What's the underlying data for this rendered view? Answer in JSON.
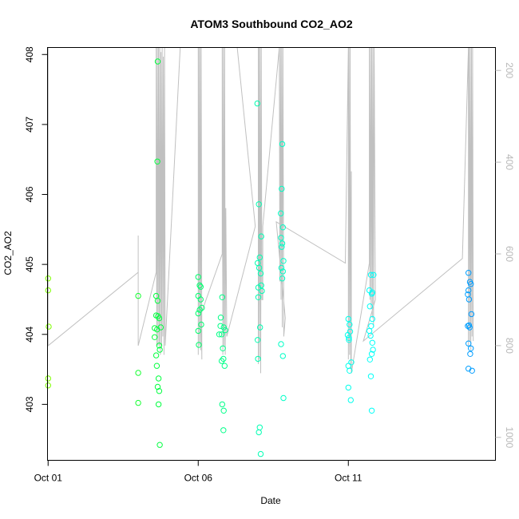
{
  "chart_data": {
    "type": "scatter",
    "title": "ATOM3 Southbound CO2_AO2",
    "xlabel": "Date",
    "ylabel": "CO2_AO2",
    "x_ticks": [
      {
        "day": 1,
        "label": "Oct 01"
      },
      {
        "day": 6,
        "label": "Oct 06"
      },
      {
        "day": 11,
        "label": "Oct 11"
      }
    ],
    "xlim": [
      0.98,
      15.9
    ],
    "ylim": [
      402.2,
      408.1
    ],
    "y_ticks": [
      403,
      404,
      405,
      406,
      407,
      408
    ],
    "y2lim": [
      1050,
      150
    ],
    "y2_ticks": [
      200,
      400,
      600,
      800,
      1000
    ],
    "grid": false,
    "legend": "none",
    "colors": {
      "profile_line": "#c0c0c0",
      "right_axis": "#b8b8b8",
      "points_gradient": [
        "#80ff00",
        "#00ff40",
        "#00ffc0",
        "#00ffff",
        "#0080ff"
      ]
    },
    "series": [
      {
        "values": [
          {
            "x": 1.0,
            "y": 404.8
          },
          {
            "x": 1.0,
            "y": 404.63
          },
          {
            "x": 1.02,
            "y": 404.11
          },
          {
            "x": 1.0,
            "y": 403.37
          },
          {
            "x": 1.0,
            "y": 403.27
          },
          {
            "x": 4.0,
            "y": 404.55
          },
          {
            "x": 4.0,
            "y": 403.45
          },
          {
            "x": 4.0,
            "y": 403.02
          },
          {
            "x": 4.6,
            "y": 404.55
          },
          {
            "x": 4.6,
            "y": 404.27
          },
          {
            "x": 4.55,
            "y": 404.09
          },
          {
            "x": 4.55,
            "y": 403.96
          },
          {
            "x": 4.6,
            "y": 403.7
          },
          {
            "x": 4.62,
            "y": 403.55
          },
          {
            "x": 4.65,
            "y": 403.25
          },
          {
            "x": 4.7,
            "y": 403.19
          },
          {
            "x": 4.68,
            "y": 403.0
          },
          {
            "x": 4.72,
            "y": 402.42
          },
          {
            "x": 4.65,
            "y": 407.9
          },
          {
            "x": 4.65,
            "y": 404.48
          },
          {
            "x": 4.63,
            "y": 404.07
          },
          {
            "x": 4.7,
            "y": 403.84
          },
          {
            "x": 4.72,
            "y": 403.78
          },
          {
            "x": 4.68,
            "y": 403.37
          },
          {
            "x": 4.66,
            "y": 404.26
          },
          {
            "x": 4.75,
            "y": 404.1
          },
          {
            "x": 4.64,
            "y": 406.47
          },
          {
            "x": 4.7,
            "y": 404.23
          },
          {
            "x": 6.0,
            "y": 404.82
          },
          {
            "x": 6.05,
            "y": 404.7
          },
          {
            "x": 6.0,
            "y": 404.55
          },
          {
            "x": 6.08,
            "y": 404.5
          },
          {
            "x": 6.05,
            "y": 404.35
          },
          {
            "x": 6.0,
            "y": 404.3
          },
          {
            "x": 6.1,
            "y": 404.14
          },
          {
            "x": 6.0,
            "y": 404.05
          },
          {
            "x": 6.02,
            "y": 403.85
          },
          {
            "x": 6.08,
            "y": 404.68
          },
          {
            "x": 6.12,
            "y": 404.38
          },
          {
            "x": 6.8,
            "y": 404.53
          },
          {
            "x": 6.75,
            "y": 404.24
          },
          {
            "x": 6.85,
            "y": 404.1
          },
          {
            "x": 6.78,
            "y": 404.0
          },
          {
            "x": 6.82,
            "y": 403.8
          },
          {
            "x": 6.84,
            "y": 403.65
          },
          {
            "x": 6.88,
            "y": 403.55
          },
          {
            "x": 6.8,
            "y": 403.0
          },
          {
            "x": 6.85,
            "y": 402.91
          },
          {
            "x": 6.84,
            "y": 402.63
          },
          {
            "x": 6.7,
            "y": 404.0
          },
          {
            "x": 6.74,
            "y": 404.12
          },
          {
            "x": 6.9,
            "y": 404.06
          },
          {
            "x": 6.78,
            "y": 403.62
          },
          {
            "x": 7.97,
            "y": 407.3
          },
          {
            "x": 8.02,
            "y": 405.86
          },
          {
            "x": 8.1,
            "y": 405.4
          },
          {
            "x": 8.05,
            "y": 405.1
          },
          {
            "x": 7.98,
            "y": 405.02
          },
          {
            "x": 8.03,
            "y": 404.95
          },
          {
            "x": 8.08,
            "y": 404.87
          },
          {
            "x": 8.0,
            "y": 404.67
          },
          {
            "x": 8.1,
            "y": 404.7
          },
          {
            "x": 8.12,
            "y": 404.62
          },
          {
            "x": 8.0,
            "y": 404.53
          },
          {
            "x": 7.98,
            "y": 403.92
          },
          {
            "x": 8.06,
            "y": 404.1
          },
          {
            "x": 7.99,
            "y": 403.65
          },
          {
            "x": 8.05,
            "y": 402.67
          },
          {
            "x": 8.02,
            "y": 402.6
          },
          {
            "x": 8.08,
            "y": 402.29
          },
          {
            "x": 8.8,
            "y": 406.72
          },
          {
            "x": 8.78,
            "y": 406.08
          },
          {
            "x": 8.75,
            "y": 405.73
          },
          {
            "x": 8.82,
            "y": 405.53
          },
          {
            "x": 8.76,
            "y": 405.38
          },
          {
            "x": 8.8,
            "y": 405.3
          },
          {
            "x": 8.78,
            "y": 405.25
          },
          {
            "x": 8.84,
            "y": 405.05
          },
          {
            "x": 8.77,
            "y": 404.95
          },
          {
            "x": 8.82,
            "y": 404.9
          },
          {
            "x": 8.8,
            "y": 404.8
          },
          {
            "x": 8.76,
            "y": 403.86
          },
          {
            "x": 8.82,
            "y": 403.69
          },
          {
            "x": 8.84,
            "y": 403.09
          },
          {
            "x": 11.0,
            "y": 404.22
          },
          {
            "x": 11.04,
            "y": 404.14
          },
          {
            "x": 11.06,
            "y": 404.04
          },
          {
            "x": 10.98,
            "y": 403.99
          },
          {
            "x": 11.02,
            "y": 403.92
          },
          {
            "x": 11.0,
            "y": 403.55
          },
          {
            "x": 11.04,
            "y": 403.48
          },
          {
            "x": 11.0,
            "y": 403.24
          },
          {
            "x": 11.08,
            "y": 403.06
          },
          {
            "x": 11.1,
            "y": 403.6
          },
          {
            "x": 11.02,
            "y": 403.95
          },
          {
            "x": 11.75,
            "y": 404.85
          },
          {
            "x": 11.7,
            "y": 404.63
          },
          {
            "x": 11.78,
            "y": 404.58
          },
          {
            "x": 11.72,
            "y": 404.4
          },
          {
            "x": 11.8,
            "y": 404.22
          },
          {
            "x": 11.76,
            "y": 404.12
          },
          {
            "x": 11.7,
            "y": 404.05
          },
          {
            "x": 11.74,
            "y": 403.98
          },
          {
            "x": 11.8,
            "y": 403.88
          },
          {
            "x": 11.82,
            "y": 403.78
          },
          {
            "x": 11.78,
            "y": 403.72
          },
          {
            "x": 11.72,
            "y": 403.64
          },
          {
            "x": 11.75,
            "y": 403.4
          },
          {
            "x": 11.78,
            "y": 402.91
          },
          {
            "x": 11.84,
            "y": 404.85
          },
          {
            "x": 11.8,
            "y": 404.6
          },
          {
            "x": 15.0,
            "y": 404.88
          },
          {
            "x": 15.05,
            "y": 404.75
          },
          {
            "x": 15.0,
            "y": 404.63
          },
          {
            "x": 14.98,
            "y": 404.57
          },
          {
            "x": 15.02,
            "y": 404.5
          },
          {
            "x": 15.1,
            "y": 404.29
          },
          {
            "x": 14.98,
            "y": 404.12
          },
          {
            "x": 15.04,
            "y": 404.1
          },
          {
            "x": 15.0,
            "y": 403.87
          },
          {
            "x": 15.08,
            "y": 403.8
          },
          {
            "x": 15.06,
            "y": 403.72
          },
          {
            "x": 15.0,
            "y": 403.51
          },
          {
            "x": 15.12,
            "y": 403.48
          },
          {
            "x": 15.02,
            "y": 404.13
          },
          {
            "x": 15.08,
            "y": 404.72
          }
        ]
      }
    ],
    "profile": [
      {
        "x": 1.0,
        "p": 150
      },
      {
        "x": 1.0,
        "p": 800
      },
      {
        "x": 4.0,
        "p": 640
      },
      {
        "x": 4.0,
        "p": 560
      },
      {
        "x": 4.0,
        "p": 800
      },
      {
        "x": 4.6,
        "p": 640
      },
      {
        "x": 4.6,
        "p": 150
      },
      {
        "x": 4.62,
        "p": 800
      },
      {
        "x": 4.64,
        "p": 150
      },
      {
        "x": 4.66,
        "p": 800
      },
      {
        "x": 4.68,
        "p": 150
      },
      {
        "x": 4.7,
        "p": 800
      },
      {
        "x": 4.72,
        "p": 150
      },
      {
        "x": 4.74,
        "p": 820
      },
      {
        "x": 4.76,
        "p": 160
      },
      {
        "x": 4.78,
        "p": 800
      },
      {
        "x": 4.8,
        "p": 150
      },
      {
        "x": 4.82,
        "p": 780
      },
      {
        "x": 4.84,
        "p": 170
      },
      {
        "x": 4.86,
        "p": 820
      },
      {
        "x": 4.88,
        "p": 150
      },
      {
        "x": 4.9,
        "p": 800
      },
      {
        "x": 5.4,
        "p": 150
      },
      {
        "x": 6.0,
        "p": 150
      },
      {
        "x": 6.0,
        "p": 820
      },
      {
        "x": 6.02,
        "p": 150
      },
      {
        "x": 6.04,
        "p": 800
      },
      {
        "x": 6.06,
        "p": 150
      },
      {
        "x": 6.08,
        "p": 810
      },
      {
        "x": 6.1,
        "p": 150
      },
      {
        "x": 6.12,
        "p": 830
      },
      {
        "x": 6.1,
        "p": 730
      },
      {
        "x": 6.8,
        "p": 600
      },
      {
        "x": 6.8,
        "p": 150
      },
      {
        "x": 6.82,
        "p": 820
      },
      {
        "x": 6.84,
        "p": 150
      },
      {
        "x": 6.86,
        "p": 800
      },
      {
        "x": 6.88,
        "p": 150
      },
      {
        "x": 6.9,
        "p": 820
      },
      {
        "x": 6.92,
        "p": 500
      },
      {
        "x": 6.95,
        "p": 780
      },
      {
        "x": 7.9,
        "p": 540
      },
      {
        "x": 7.3,
        "p": 150
      },
      {
        "x": 8.0,
        "p": 150
      },
      {
        "x": 8.0,
        "p": 840
      },
      {
        "x": 8.02,
        "p": 150
      },
      {
        "x": 8.04,
        "p": 830
      },
      {
        "x": 8.06,
        "p": 150
      },
      {
        "x": 8.08,
        "p": 860
      },
      {
        "x": 8.1,
        "p": 150
      },
      {
        "x": 8.12,
        "p": 700
      },
      {
        "x": 8.15,
        "p": 700
      },
      {
        "x": 8.15,
        "p": 540
      },
      {
        "x": 8.7,
        "p": 150
      },
      {
        "x": 8.72,
        "p": 660
      },
      {
        "x": 8.74,
        "p": 150
      },
      {
        "x": 8.76,
        "p": 700
      },
      {
        "x": 8.78,
        "p": 150
      },
      {
        "x": 8.8,
        "p": 760
      },
      {
        "x": 8.82,
        "p": 150
      },
      {
        "x": 8.85,
        "p": 780
      },
      {
        "x": 8.9,
        "p": 740
      },
      {
        "x": 8.6,
        "p": 530
      },
      {
        "x": 10.9,
        "p": 620
      },
      {
        "x": 11.0,
        "p": 150
      },
      {
        "x": 11.0,
        "p": 830
      },
      {
        "x": 11.02,
        "p": 150
      },
      {
        "x": 11.04,
        "p": 820
      },
      {
        "x": 11.06,
        "p": 150
      },
      {
        "x": 11.08,
        "p": 850
      },
      {
        "x": 11.1,
        "p": 420
      },
      {
        "x": 11.1,
        "p": 860
      },
      {
        "x": 11.7,
        "p": 620
      },
      {
        "x": 11.7,
        "p": 150
      },
      {
        "x": 11.72,
        "p": 700
      },
      {
        "x": 11.74,
        "p": 150
      },
      {
        "x": 11.76,
        "p": 720
      },
      {
        "x": 11.78,
        "p": 150
      },
      {
        "x": 11.8,
        "p": 740
      },
      {
        "x": 11.82,
        "p": 150
      },
      {
        "x": 11.84,
        "p": 760
      },
      {
        "x": 11.86,
        "p": 150
      },
      {
        "x": 11.9,
        "p": 700
      },
      {
        "x": 11.5,
        "p": 790
      },
      {
        "x": 14.8,
        "p": 610
      },
      {
        "x": 15.0,
        "p": 150
      },
      {
        "x": 15.0,
        "p": 800
      },
      {
        "x": 15.02,
        "p": 150
      },
      {
        "x": 15.04,
        "p": 790
      },
      {
        "x": 15.06,
        "p": 150
      },
      {
        "x": 15.08,
        "p": 810
      },
      {
        "x": 15.1,
        "p": 150
      },
      {
        "x": 15.12,
        "p": 780
      },
      {
        "x": 15.14,
        "p": 150
      },
      {
        "x": 15.16,
        "p": 790
      }
    ]
  }
}
